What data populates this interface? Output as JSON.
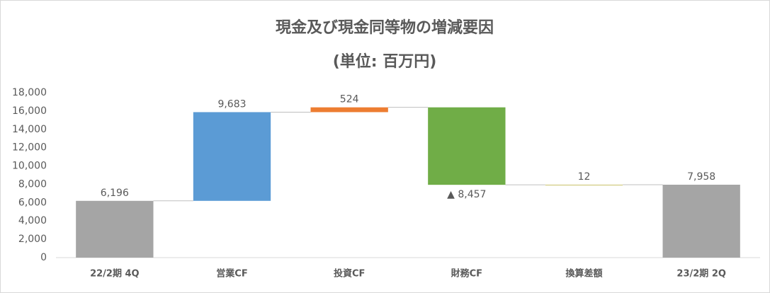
{
  "chart_data": {
    "type": "waterfall",
    "title": "現金及び現金同等物の増減要因",
    "subtitle": "(単位: 百万円)",
    "categories": [
      "22/2期 4Q",
      "営業CF",
      "投資CF",
      "財務CF",
      "換算差額",
      "23/2期 2Q"
    ],
    "values": [
      6196,
      9683,
      524,
      -8457,
      12,
      7958
    ],
    "value_labels": [
      "6,196",
      "9,683",
      "524",
      "▲ 8,457",
      "12",
      "7,958"
    ],
    "totals": [
      true,
      false,
      false,
      false,
      false,
      true
    ],
    "colors": [
      "#a5a5a5",
      "#5b9bd5",
      "#ed7d31",
      "#70ad47",
      "#c9c26b",
      "#a5a5a5"
    ],
    "ylim": [
      0,
      18000
    ],
    "yticks": [
      0,
      {
        "value": 2000,
        "label": "2,000"
      },
      {
        "value": 4000,
        "label": "4,000"
      },
      {
        "value": 6000,
        "label": "6,000"
      },
      {
        "value": 8000,
        "label": "8,000"
      },
      {
        "value": 10000,
        "label": "10,000"
      },
      {
        "value": 12000,
        "label": "12,000"
      },
      {
        "value": 14000,
        "label": "14,000"
      },
      {
        "value": 16000,
        "label": "16,000"
      },
      {
        "value": 18000,
        "label": "18,000"
      }
    ],
    "grid": false
  }
}
